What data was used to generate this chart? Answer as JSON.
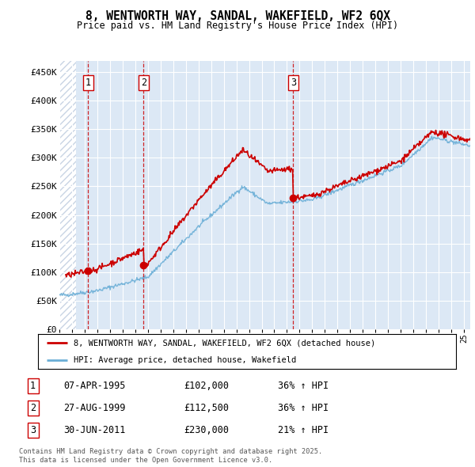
{
  "title_line1": "8, WENTWORTH WAY, SANDAL, WAKEFIELD, WF2 6QX",
  "title_line2": "Price paid vs. HM Land Registry's House Price Index (HPI)",
  "ylim": [
    0,
    470000
  ],
  "yticks": [
    0,
    50000,
    100000,
    150000,
    200000,
    250000,
    300000,
    350000,
    400000,
    450000
  ],
  "ytick_labels": [
    "£0",
    "£50K",
    "£100K",
    "£150K",
    "£200K",
    "£250K",
    "£300K",
    "£350K",
    "£400K",
    "£450K"
  ],
  "hpi_color": "#6aaed6",
  "price_color": "#cc0000",
  "sale_marker_color": "#cc0000",
  "dashed_line_color": "#cc0000",
  "legend_label_price": "8, WENTWORTH WAY, SANDAL, WAKEFIELD, WF2 6QX (detached house)",
  "legend_label_hpi": "HPI: Average price, detached house, Wakefield",
  "sales": [
    {
      "num": 1,
      "date_num": 1995.27,
      "price": 102000
    },
    {
      "num": 2,
      "date_num": 1999.65,
      "price": 112500
    },
    {
      "num": 3,
      "date_num": 2011.5,
      "price": 230000
    }
  ],
  "table_rows": [
    {
      "num": "1",
      "date": "07-APR-1995",
      "price": "£102,000",
      "change": "36% ↑ HPI"
    },
    {
      "num": "2",
      "date": "27-AUG-1999",
      "price": "£112,500",
      "change": "36% ↑ HPI"
    },
    {
      "num": "3",
      "date": "30-JUN-2011",
      "price": "£230,000",
      "change": "21% ↑ HPI"
    }
  ],
  "footnote": "Contains HM Land Registry data © Crown copyright and database right 2025.\nThis data is licensed under the Open Government Licence v3.0.",
  "background_hatch_color": "#c8d4e4",
  "background_plot_color": "#dce8f5",
  "xlim_start": 1993.0,
  "xlim_end": 2025.5,
  "hatch_end": 1994.3
}
